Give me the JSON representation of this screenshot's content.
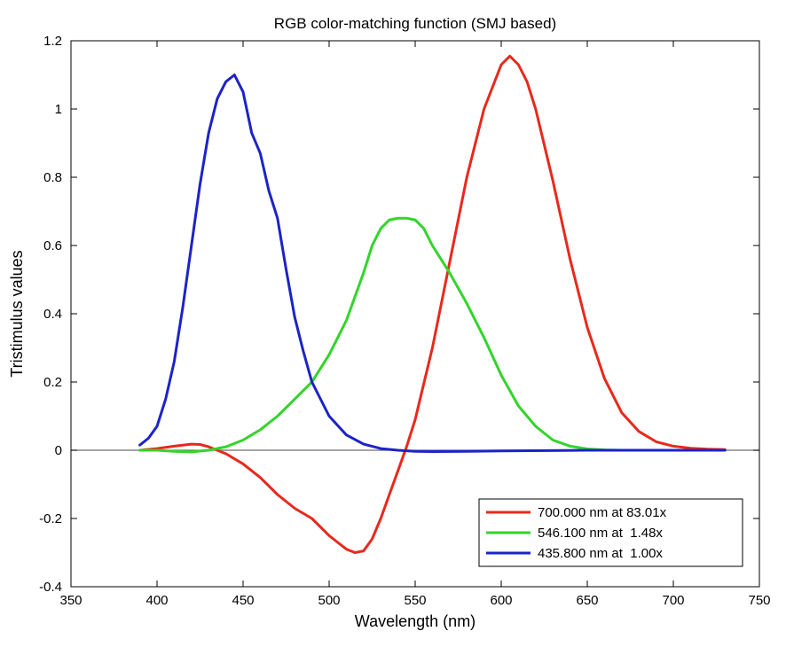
{
  "chart_data": {
    "type": "line",
    "title": "RGB color-matching function (SMJ based)",
    "xlabel": "Wavelength (nm)",
    "ylabel": "Tristimulus values",
    "xlim": [
      350,
      750
    ],
    "ylim": [
      -0.4,
      1.2
    ],
    "xticks": [
      350,
      400,
      450,
      500,
      550,
      600,
      650,
      700,
      750
    ],
    "yticks": [
      -0.4,
      -0.2,
      0,
      0.2,
      0.4,
      0.6,
      0.8,
      1,
      1.2
    ],
    "xtick_labels": [
      "350",
      "400",
      "450",
      "500",
      "550",
      "600",
      "650",
      "700",
      "750"
    ],
    "ytick_labels": [
      "-0.4",
      "-0.2",
      "0",
      "0.2",
      "0.4",
      "0.6",
      "0.8",
      "1",
      "1.2"
    ],
    "grid": false,
    "zero_line": true,
    "legend": {
      "position": "bottom-right",
      "entries": [
        "700.000 nm at 83.01x",
        "546.100 nm at  1.48x",
        "435.800 nm at  1.00x"
      ]
    },
    "series": [
      {
        "name": "700.000 nm at 83.01x",
        "color": "#e8291c",
        "x": [
          390,
          400,
          410,
          420,
          425,
          430,
          440,
          450,
          460,
          470,
          480,
          490,
          500,
          505,
          510,
          515,
          520,
          525,
          530,
          535,
          540,
          545,
          550,
          560,
          570,
          580,
          590,
          600,
          605,
          610,
          615,
          620,
          630,
          640,
          650,
          660,
          670,
          680,
          690,
          700,
          710,
          720,
          730
        ],
        "y": [
          0.0,
          0.005,
          0.012,
          0.018,
          0.017,
          0.01,
          -0.01,
          -0.04,
          -0.08,
          -0.13,
          -0.17,
          -0.2,
          -0.25,
          -0.27,
          -0.29,
          -0.3,
          -0.295,
          -0.26,
          -0.2,
          -0.13,
          -0.06,
          0.01,
          0.09,
          0.3,
          0.55,
          0.8,
          1.0,
          1.13,
          1.155,
          1.13,
          1.08,
          1.0,
          0.79,
          0.56,
          0.36,
          0.21,
          0.11,
          0.055,
          0.025,
          0.012,
          0.006,
          0.003,
          0.002
        ]
      },
      {
        "name": "546.100 nm at  1.48x",
        "color": "#33d42b",
        "x": [
          390,
          400,
          410,
          420,
          430,
          440,
          450,
          460,
          470,
          480,
          490,
          500,
          510,
          520,
          525,
          530,
          535,
          540,
          545,
          550,
          555,
          560,
          570,
          580,
          590,
          600,
          610,
          620,
          630,
          640,
          650,
          660,
          670,
          680,
          700,
          730
        ],
        "y": [
          0.0,
          0.0,
          -0.003,
          -0.005,
          0.0,
          0.01,
          0.03,
          0.06,
          0.1,
          0.15,
          0.2,
          0.28,
          0.38,
          0.52,
          0.6,
          0.65,
          0.675,
          0.68,
          0.68,
          0.675,
          0.65,
          0.6,
          0.52,
          0.43,
          0.33,
          0.22,
          0.13,
          0.07,
          0.03,
          0.012,
          0.004,
          0.001,
          0.0,
          0.0,
          0.0,
          0.0
        ]
      },
      {
        "name": "435.800 nm at  1.00x",
        "color": "#1c23c7",
        "x": [
          390,
          395,
          400,
          405,
          410,
          415,
          420,
          425,
          430,
          435,
          440,
          445,
          450,
          455,
          460,
          465,
          470,
          475,
          480,
          485,
          490,
          500,
          510,
          520,
          530,
          540,
          550,
          560,
          580,
          600,
          650,
          700,
          730
        ],
        "y": [
          0.015,
          0.035,
          0.07,
          0.15,
          0.26,
          0.42,
          0.6,
          0.78,
          0.93,
          1.03,
          1.08,
          1.1,
          1.05,
          0.93,
          0.87,
          0.76,
          0.68,
          0.53,
          0.39,
          0.29,
          0.2,
          0.1,
          0.045,
          0.018,
          0.005,
          0.0,
          -0.003,
          -0.004,
          -0.003,
          -0.002,
          0.0,
          0.0,
          0.0
        ]
      }
    ]
  }
}
